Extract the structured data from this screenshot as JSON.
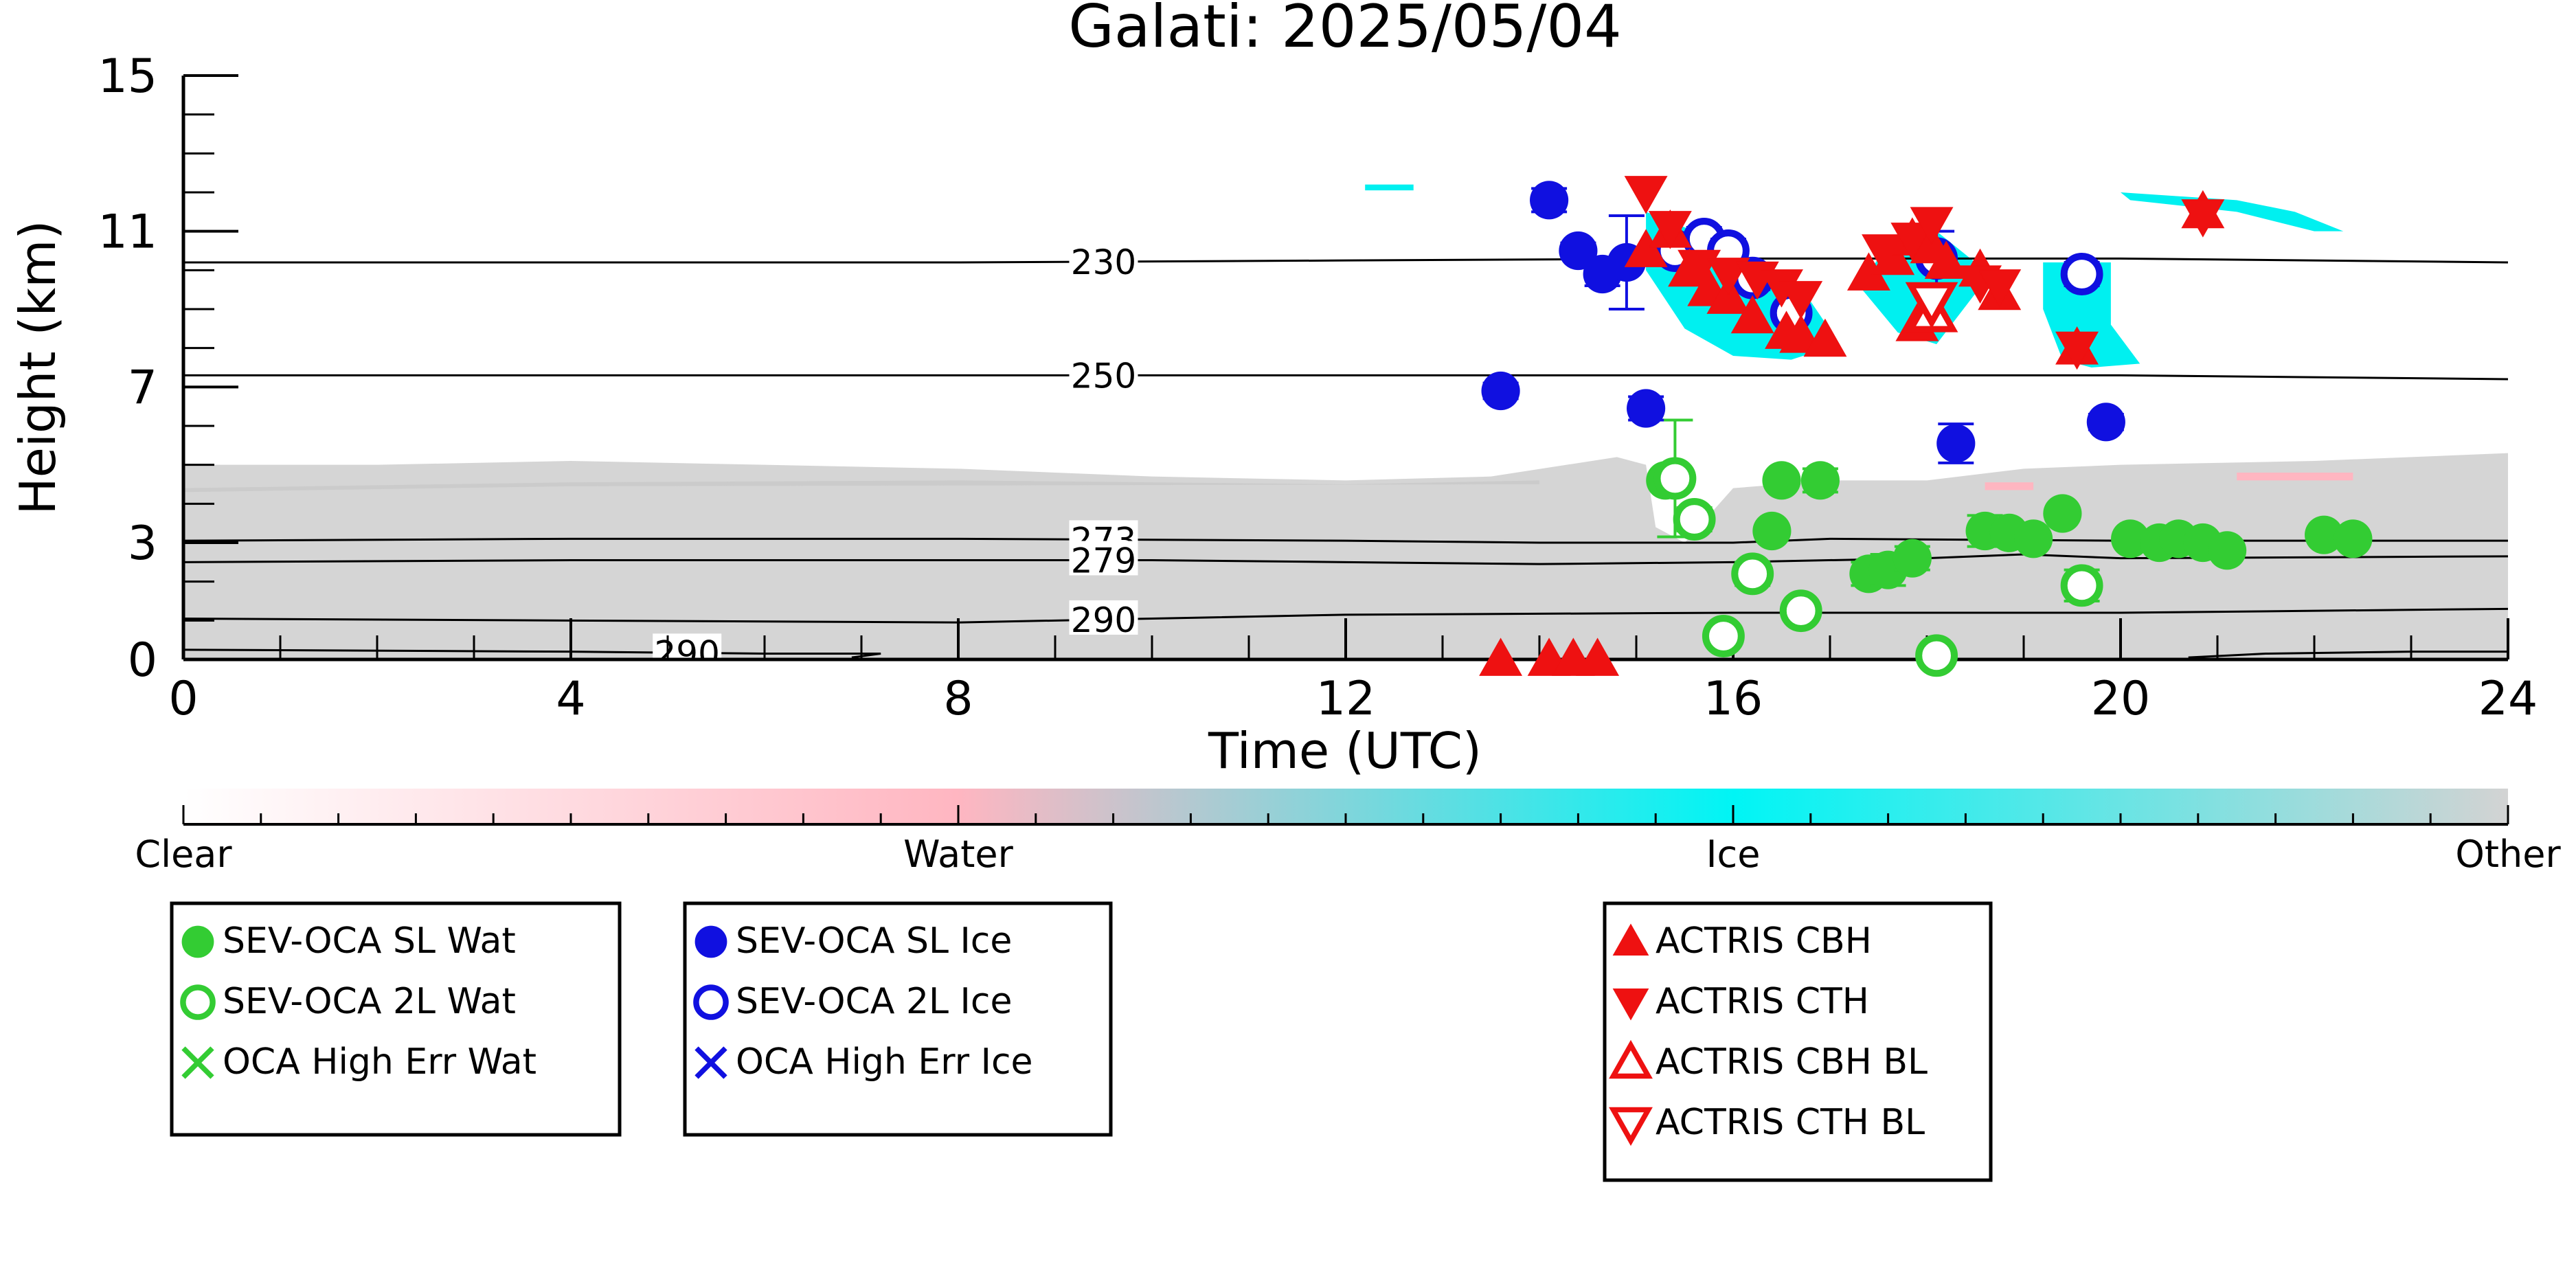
{
  "chart_data": {
    "type": "scatter",
    "title": "Galati: 2025/05/04",
    "xlabel": "Time (UTC)",
    "ylabel": "Height (km)",
    "xlim": [
      0,
      24
    ],
    "ylim": [
      0,
      15
    ],
    "x_ticks": [
      0,
      4,
      8,
      12,
      16,
      20,
      24
    ],
    "y_ticks": [
      0,
      3,
      7,
      11,
      15
    ],
    "x_tick_labels": [
      "0",
      "4",
      "8",
      "12",
      "16",
      "20",
      "24"
    ],
    "y_tick_labels": [
      "0",
      "3",
      "7",
      "11",
      "15"
    ],
    "isotherms": [
      {
        "label": "230",
        "label_x": 9.5,
        "points": [
          [
            0,
            10.2
          ],
          [
            4,
            10.2
          ],
          [
            8,
            10.2
          ],
          [
            12,
            10.25
          ],
          [
            16,
            10.3
          ],
          [
            20,
            10.3
          ],
          [
            24,
            10.2
          ]
        ]
      },
      {
        "label": "250",
        "label_x": 9.5,
        "points": [
          [
            0,
            7.3
          ],
          [
            4,
            7.3
          ],
          [
            8,
            7.3
          ],
          [
            12,
            7.3
          ],
          [
            16,
            7.3
          ],
          [
            20,
            7.3
          ],
          [
            24,
            7.2
          ]
        ]
      },
      {
        "label": "273",
        "label_x": 9.5,
        "points": [
          [
            0,
            3.05
          ],
          [
            4,
            3.1
          ],
          [
            8,
            3.1
          ],
          [
            12,
            3.05
          ],
          [
            14,
            3.0
          ],
          [
            16,
            3.0
          ],
          [
            17,
            3.1
          ],
          [
            20,
            3.05
          ],
          [
            24,
            3.05
          ]
        ]
      },
      {
        "label": "279",
        "label_x": 9.5,
        "points": [
          [
            0,
            2.5
          ],
          [
            4,
            2.55
          ],
          [
            8,
            2.55
          ],
          [
            10,
            2.55
          ],
          [
            12,
            2.5
          ],
          [
            14,
            2.45
          ],
          [
            16,
            2.5
          ],
          [
            18,
            2.6
          ],
          [
            19,
            2.7
          ],
          [
            20,
            2.6
          ],
          [
            24,
            2.65
          ]
        ]
      },
      {
        "label": "290",
        "label_x": 9.5,
        "points": [
          [
            0,
            1.05
          ],
          [
            4,
            1.0
          ],
          [
            8,
            0.95
          ],
          [
            10,
            1.05
          ],
          [
            12,
            1.15
          ],
          [
            16,
            1.2
          ],
          [
            20,
            1.2
          ],
          [
            24,
            1.3
          ]
        ]
      },
      {
        "label": "290",
        "label_x": 5.2,
        "points": [
          [
            0,
            0.25
          ],
          [
            4,
            0.2
          ],
          [
            6,
            0.15
          ],
          [
            7.2,
            0.15
          ],
          [
            6.9,
            0.05
          ]
        ]
      },
      {
        "label": "",
        "label_x": null,
        "points": [
          [
            20.7,
            0.05
          ],
          [
            21.5,
            0.15
          ],
          [
            23,
            0.2
          ],
          [
            24,
            0.2
          ]
        ]
      }
    ],
    "series": [
      {
        "name": "SEV-OCA SL Wat",
        "color": "#33cc33",
        "marker": "filled-circle",
        "points": [
          [
            15.3,
            4.6,
            0,
            0
          ],
          [
            16.5,
            4.6,
            0,
            0
          ],
          [
            16.9,
            4.6,
            0.3,
            0.3
          ],
          [
            16.4,
            3.3,
            0.05,
            0.05
          ],
          [
            17.4,
            2.2,
            0.3,
            0.3
          ],
          [
            17.6,
            2.3,
            0.4,
            0.4
          ],
          [
            17.85,
            2.6,
            0.3,
            0.3
          ],
          [
            18.6,
            3.3,
            0.4,
            0.4
          ],
          [
            18.85,
            3.25,
            0,
            0
          ],
          [
            19.1,
            3.1,
            0,
            0
          ],
          [
            19.4,
            3.75,
            0,
            0
          ],
          [
            20.1,
            3.1,
            0,
            0
          ],
          [
            20.4,
            3.0,
            0,
            0
          ],
          [
            20.6,
            3.1,
            0,
            0
          ],
          [
            20.85,
            3.0,
            0.2,
            0.2
          ],
          [
            21.1,
            2.8,
            0,
            0
          ],
          [
            22.1,
            3.2,
            0,
            0
          ],
          [
            22.4,
            3.1,
            0,
            0
          ]
        ]
      },
      {
        "name": "SEV-OCA 2L Wat",
        "color": "#33cc33",
        "marker": "open-circle",
        "points": [
          [
            15.4,
            4.65,
            1.5,
            1.5
          ],
          [
            15.6,
            3.6,
            0.3,
            0.3
          ],
          [
            16.2,
            2.2,
            0.3,
            0.3
          ],
          [
            16.7,
            1.25,
            0,
            0
          ],
          [
            15.9,
            0.6,
            0,
            0
          ],
          [
            18.1,
            0.1,
            0,
            0
          ],
          [
            19.6,
            1.9,
            0.4,
            0.4
          ]
        ]
      },
      {
        "name": "OCA High Err Wat",
        "color": "#33cc33",
        "marker": "x",
        "points": []
      },
      {
        "name": "SEV-OCA SL Ice",
        "color": "#1010e0",
        "marker": "filled-circle",
        "points": [
          [
            14.1,
            11.8,
            0.3,
            0.3
          ],
          [
            14.4,
            10.5,
            0.2,
            0.2
          ],
          [
            14.65,
            9.9,
            0.3,
            0.3
          ],
          [
            14.9,
            10.2,
            1.2,
            1.2
          ],
          [
            13.6,
            6.9,
            0.2,
            0.2
          ],
          [
            15.1,
            6.45,
            0.3,
            0.3
          ],
          [
            18.3,
            5.55,
            0.5,
            0.5
          ],
          [
            19.85,
            6.1,
            0.2,
            0.2
          ]
        ]
      },
      {
        "name": "SEV-OCA 2L Ice",
        "color": "#1010e0",
        "marker": "open-circle",
        "points": [
          [
            15.4,
            10.5,
            0.3,
            0.3
          ],
          [
            15.7,
            10.8,
            0.3,
            0.3
          ],
          [
            15.95,
            10.5,
            0.3,
            0.3
          ],
          [
            16.2,
            9.8,
            0.3,
            0.3
          ],
          [
            16.6,
            8.9,
            0.7,
            0.7
          ],
          [
            18.1,
            10.3,
            0.7,
            0.7
          ],
          [
            19.6,
            9.9,
            0.3,
            0.3
          ]
        ]
      },
      {
        "name": "OCA High Err Ice",
        "color": "#1010e0",
        "marker": "x",
        "points": []
      },
      {
        "name": "ACTRIS CBH",
        "color": "#ee1111",
        "marker": "triangle-up",
        "points": [
          [
            15.1,
            10.5
          ],
          [
            15.35,
            11.0
          ],
          [
            15.55,
            10.0
          ],
          [
            15.75,
            9.5
          ],
          [
            15.95,
            9.3
          ],
          [
            16.2,
            8.8
          ],
          [
            16.55,
            8.4
          ],
          [
            16.7,
            8.3
          ],
          [
            16.95,
            8.2
          ],
          [
            17.4,
            9.9
          ],
          [
            17.65,
            10.3
          ],
          [
            17.85,
            10.8
          ],
          [
            18.05,
            10.6
          ],
          [
            18.2,
            10.2
          ],
          [
            18.55,
            10.0
          ],
          [
            18.75,
            9.4
          ],
          [
            17.9,
            8.6
          ],
          [
            19.55,
            8.0
          ],
          [
            20.85,
            11.5
          ],
          [
            13.6,
            0.0
          ],
          [
            14.1,
            0.0
          ],
          [
            14.35,
            0.0
          ],
          [
            14.6,
            0.0
          ]
        ]
      },
      {
        "name": "ACTRIS CTH",
        "color": "#ee1111",
        "marker": "triangle-down",
        "points": [
          [
            15.1,
            12.0
          ],
          [
            15.35,
            11.1
          ],
          [
            15.65,
            10.1
          ],
          [
            15.95,
            9.9
          ],
          [
            16.25,
            9.8
          ],
          [
            16.5,
            9.6
          ],
          [
            16.7,
            9.3
          ],
          [
            17.55,
            10.5
          ],
          [
            17.85,
            10.8
          ],
          [
            18.05,
            11.2
          ],
          [
            18.55,
            9.7
          ],
          [
            18.75,
            9.6
          ],
          [
            19.55,
            8.0
          ],
          [
            20.85,
            11.4
          ]
        ]
      },
      {
        "name": "ACTRIS CBH BL",
        "color": "#ee1111",
        "marker": "open-triangle-up",
        "points": [
          [
            18.05,
            8.9
          ]
        ]
      },
      {
        "name": "ACTRIS CTH BL",
        "color": "#ee1111",
        "marker": "open-triangle-down",
        "points": [
          [
            18.05,
            9.2
          ]
        ]
      }
    ],
    "colorbar": {
      "labels": [
        "Clear",
        "Water",
        "Ice",
        "Other"
      ],
      "colors": [
        "#ffffff",
        "#ffb6c1",
        "#00f5f5",
        "#d3d3d3"
      ]
    },
    "colors": {
      "other_fill": "#d3d3d3",
      "ice_fill": "#00f0f0",
      "water_fill": "#ffb6c1",
      "axis": "#000000"
    }
  },
  "legend_groups": [
    {
      "entries": [
        {
          "label": "SEV-OCA SL Wat",
          "marker": "filled-circle",
          "color": "#33cc33"
        },
        {
          "label": "SEV-OCA 2L Wat",
          "marker": "open-circle",
          "color": "#33cc33"
        },
        {
          "label": "OCA High Err Wat",
          "marker": "x",
          "color": "#33cc33"
        }
      ]
    },
    {
      "entries": [
        {
          "label": "SEV-OCA SL Ice",
          "marker": "filled-circle",
          "color": "#1010e0"
        },
        {
          "label": "SEV-OCA 2L Ice",
          "marker": "open-circle",
          "color": "#1010e0"
        },
        {
          "label": "OCA High Err Ice",
          "marker": "x",
          "color": "#1010e0"
        }
      ]
    },
    {
      "entries": [
        {
          "label": "ACTRIS CBH",
          "marker": "triangle-up",
          "color": "#ee1111"
        },
        {
          "label": "ACTRIS CTH",
          "marker": "triangle-down",
          "color": "#ee1111"
        },
        {
          "label": "ACTRIS CBH BL",
          "marker": "open-triangle-up",
          "color": "#ee1111"
        },
        {
          "label": "ACTRIS CTH BL",
          "marker": "open-triangle-down",
          "color": "#ee1111"
        }
      ]
    }
  ]
}
